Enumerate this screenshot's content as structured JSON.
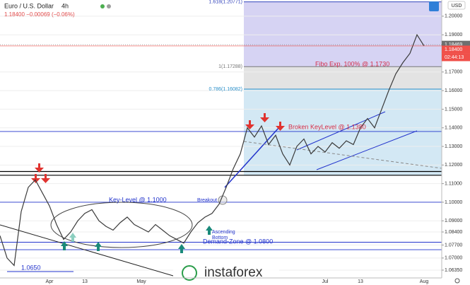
{
  "chart_data": {
    "type": "line",
    "title": "Euro / U.S. Dollar",
    "interval": "4h",
    "quote": "1.18400 −0.00069 (−0.06%)",
    "axis_unit": "USD",
    "color": "#3a3a3a",
    "categories": [
      null,
      null,
      null,
      null,
      null,
      null,
      null,
      "Apr",
      null,
      null,
      null,
      null,
      "13",
      null,
      null,
      null,
      null,
      null,
      null,
      null,
      "May",
      null,
      null,
      null,
      null,
      null,
      null,
      null,
      null,
      null,
      null,
      null,
      null,
      null,
      null,
      null,
      null,
      null,
      null,
      null,
      null,
      null,
      null,
      null,
      null,
      null,
      "Jul",
      null,
      null,
      null,
      null,
      "13",
      null,
      null,
      null,
      null,
      null,
      null,
      null,
      null,
      "Aug"
    ],
    "values": [
      1.082,
      1.07,
      1.066,
      1.095,
      1.108,
      1.112,
      1.105,
      1.098,
      1.088,
      1.08,
      1.084,
      1.09,
      1.094,
      1.096,
      1.09,
      1.087,
      1.085,
      1.089,
      1.092,
      1.088,
      1.086,
      1.084,
      1.088,
      1.085,
      1.082,
      1.08,
      1.078,
      1.084,
      1.089,
      1.092,
      1.094,
      1.099,
      1.108,
      1.118,
      1.126,
      1.14,
      1.135,
      1.141,
      1.131,
      1.136,
      1.126,
      1.12,
      1.13,
      1.134,
      1.126,
      1.13,
      1.127,
      1.132,
      1.129,
      1.133,
      1.131,
      1.14,
      1.145,
      1.14,
      1.15,
      1.16,
      1.169,
      1.175,
      1.18,
      1.19,
      1.184
    ],
    "ylim": [
      1.0593,
      1.2087
    ],
    "yticks": [
      {
        "value": 1.2,
        "label": "1.20000"
      },
      {
        "value": 1.19,
        "label": "1.19000"
      },
      {
        "value": 1.17,
        "label": "1.17000"
      },
      {
        "value": 1.16,
        "label": "1.16000"
      },
      {
        "value": 1.15,
        "label": "1.15000"
      },
      {
        "value": 1.14,
        "label": "1.14000"
      },
      {
        "value": 1.13,
        "label": "1.13000"
      },
      {
        "value": 1.12,
        "label": "1.12000"
      },
      {
        "value": 1.11,
        "label": "1.11000"
      },
      {
        "value": 1.1,
        "label": "1.10000"
      },
      {
        "value": 1.09,
        "label": "1.09000"
      },
      {
        "value": 1.084,
        "label": "1.08400"
      },
      {
        "value": 1.077,
        "label": "1.07700"
      },
      {
        "value": 1.07,
        "label": "1.07000"
      },
      {
        "value": 1.0635,
        "label": "1.06350"
      }
    ],
    "grid": true,
    "zones": [
      {
        "from": 1.17288,
        "to": 1.20771,
        "color": "#d6d3f3"
      },
      {
        "from": 1.16082,
        "to": 1.17288,
        "color": "#e3e3e3"
      },
      {
        "from": 1.1145,
        "to": 1.16082,
        "color": "#d3e8f4"
      }
    ],
    "fib_levels": [
      {
        "value": 1.20771,
        "label": "1.618(1.20771)",
        "color": "#3344bb"
      },
      {
        "value": 1.17288,
        "label": "1(1.17288)",
        "color": "#777777"
      },
      {
        "value": 1.16082,
        "label": "0.786(1.16082)",
        "color": "#2a8fc9"
      }
    ],
    "hlines": [
      {
        "value": 1.1165,
        "color": "#000000"
      },
      {
        "value": 1.1145,
        "color": "#000000"
      },
      {
        "value": 1.1,
        "color": "#2233cc"
      },
      {
        "value": 1.138,
        "color": "#2233cc"
      },
      {
        "value": 1.0785,
        "color": "#2233cc"
      },
      {
        "value": 1.0745,
        "color": "#2233cc"
      }
    ],
    "price_labels": [
      {
        "value": 1.18469,
        "label": "1.18469",
        "color": "#6f6f6f"
      },
      {
        "value": 1.184,
        "label": "1.18400",
        "color": "#f0504a"
      }
    ],
    "countdown": "02:44:13",
    "annotations": [
      "Fibo Exp. 100% @ 1.1730",
      "Broken KeyLevel @ 1.1380",
      "Key-Level @ 1.1000",
      "Breakout",
      "Ascending\nBottom",
      "Demand-Zone @ 1.0800",
      "1.0650",
      "instaforex"
    ]
  }
}
